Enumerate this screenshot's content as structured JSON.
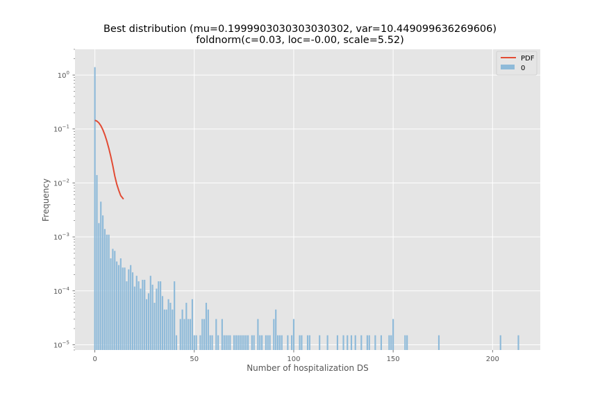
{
  "chart_data": {
    "type": "bar",
    "title": "Best distribution (mu=0.1999903030303030302, var=10.449099636269606)",
    "subtitle": "foldnorm(c=0.03, loc=-0.00, scale=5.52)",
    "xlabel": "Number of hospitalization DS",
    "ylabel": "Frequency",
    "xlim": [
      -10,
      224
    ],
    "ylim": [
      8e-06,
      3
    ],
    "yscale": "log",
    "xticks": [
      0,
      50,
      100,
      150,
      200
    ],
    "xtick_labels": [
      "0",
      "50",
      "100",
      "150",
      "200"
    ],
    "yticks": [
      1e-05,
      0.0001,
      0.001,
      0.01,
      0.1,
      1
    ],
    "ytick_labels": [
      {
        "base": "10",
        "exp": "−5"
      },
      {
        "base": "10",
        "exp": "−4"
      },
      {
        "base": "10",
        "exp": "−3"
      },
      {
        "base": "10",
        "exp": "−2"
      },
      {
        "base": "10",
        "exp": "−1"
      },
      {
        "base": "10",
        "exp": "0"
      }
    ],
    "grid": true,
    "legend": {
      "position": "top-right",
      "entries": [
        "PDF",
        "0"
      ]
    },
    "bar_width": 0.75,
    "histogram": {
      "name": "0",
      "x": [
        0,
        1,
        2,
        3,
        4,
        5,
        6,
        7,
        8,
        9,
        10,
        11,
        12,
        13,
        14,
        15,
        16,
        17,
        18,
        19,
        20,
        21,
        22,
        23,
        24,
        25,
        26,
        27,
        28,
        29,
        30,
        31,
        32,
        33,
        34,
        35,
        36,
        37,
        38,
        39,
        40,
        41,
        43,
        44,
        45,
        46,
        47,
        48,
        49,
        50,
        51,
        53,
        54,
        55,
        56,
        57,
        58,
        59,
        61,
        62,
        64,
        65,
        66,
        67,
        68,
        70,
        71,
        72,
        73,
        74,
        75,
        76,
        77,
        79,
        80,
        82,
        83,
        84,
        86,
        87,
        88,
        90,
        91,
        92,
        93,
        94,
        97,
        99,
        100,
        103,
        104,
        107,
        108,
        113,
        117,
        122,
        125,
        127,
        129,
        131,
        134,
        137,
        138,
        141,
        144,
        148,
        149,
        150,
        156,
        157,
        173,
        204,
        213
      ],
      "values": [
        1.4,
        0.014,
        0.0018,
        0.0045,
        0.0025,
        0.0014,
        0.0011,
        0.0011,
        0.0004,
        0.0006,
        0.00055,
        0.00035,
        0.0003,
        0.0004,
        0.00027,
        0.00027,
        0.00015,
        0.00025,
        0.0003,
        0.00022,
        0.00012,
        0.00019,
        0.00015,
        0.00011,
        0.00016,
        0.00016,
        7e-05,
        9e-05,
        0.00019,
        0.00013,
        6e-05,
        0.00011,
        0.00015,
        0.00015,
        8e-05,
        4.5e-05,
        4.5e-05,
        7e-05,
        6e-05,
        4.5e-05,
        0.00015,
        1.5e-05,
        3e-05,
        4.5e-05,
        3e-05,
        6e-05,
        3e-05,
        3e-05,
        7e-05,
        1.5e-05,
        1.5e-05,
        1.5e-05,
        3e-05,
        3e-05,
        6e-05,
        4.5e-05,
        1.5e-05,
        1.5e-05,
        3e-05,
        1.5e-05,
        3e-05,
        1.5e-05,
        1.5e-05,
        1.5e-05,
        1.5e-05,
        1.5e-05,
        1.5e-05,
        1.5e-05,
        1.5e-05,
        1.5e-05,
        1.5e-05,
        1.5e-05,
        1.5e-05,
        1.5e-05,
        1.5e-05,
        3e-05,
        1.5e-05,
        1.5e-05,
        1.5e-05,
        1.5e-05,
        1.5e-05,
        3e-05,
        4.5e-05,
        1.5e-05,
        1.5e-05,
        1.5e-05,
        1.5e-05,
        1.5e-05,
        3e-05,
        1.5e-05,
        1.5e-05,
        1.5e-05,
        1.5e-05,
        1.5e-05,
        1.5e-05,
        1.5e-05,
        1.5e-05,
        1.5e-05,
        1.5e-05,
        1.5e-05,
        1.5e-05,
        1.5e-05,
        1.5e-05,
        1.5e-05,
        1.5e-05,
        1.5e-05,
        1.5e-05,
        3e-05,
        1.5e-05,
        1.5e-05,
        1.5e-05,
        1.5e-05,
        1.5e-05
      ]
    },
    "pdf_line": {
      "name": "PDF",
      "x": [
        0,
        1,
        2,
        3,
        4,
        5,
        6,
        7,
        8,
        9,
        10,
        11,
        12,
        13,
        14.4
      ],
      "y": [
        0.145,
        0.14,
        0.13,
        0.115,
        0.097,
        0.078,
        0.06,
        0.044,
        0.031,
        0.021,
        0.0135,
        0.0095,
        0.0073,
        0.0058,
        0.005
      ]
    }
  }
}
